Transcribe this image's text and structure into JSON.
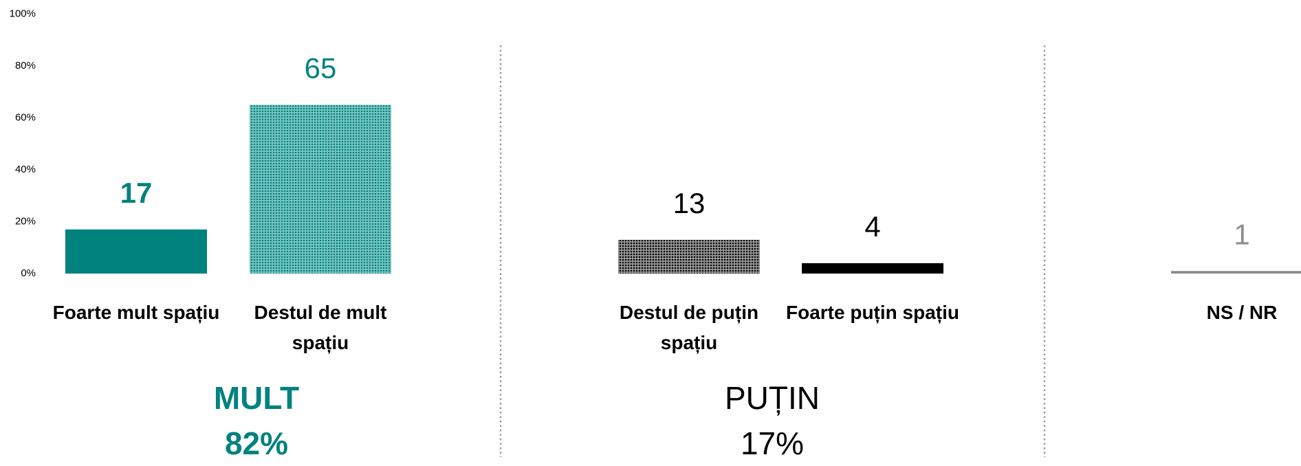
{
  "chart_data": {
    "type": "bar",
    "categories": [
      "Foarte mult spațiu",
      "Destul de mult spațiu",
      "Destul de puțin spațiu",
      "Foarte puțin spațiu",
      "NS / NR"
    ],
    "values": [
      17,
      65,
      13,
      4,
      1
    ],
    "colors": [
      "#00827f",
      "#00827f",
      "#000000",
      "#000000",
      "#8c8c8c"
    ],
    "patterns": [
      "solid",
      "dots",
      "dots",
      "solid",
      "solid"
    ],
    "ylim": [
      0,
      100
    ],
    "yticks": [
      {
        "value": 0,
        "label": "0%"
      },
      {
        "value": 20,
        "label": "20%"
      },
      {
        "value": 40,
        "label": "40%"
      },
      {
        "value": 60,
        "label": "60%"
      },
      {
        "value": 80,
        "label": "80%"
      },
      {
        "value": 100,
        "label": "100%"
      }
    ],
    "grid": false,
    "groups": [
      {
        "name": "MULT",
        "value": 82,
        "value_label": "82%",
        "color": "#00827f",
        "bold": true
      },
      {
        "name": "PUȚIN",
        "value": 17,
        "value_label": "17%",
        "color": "#000000",
        "bold": false
      }
    ]
  }
}
